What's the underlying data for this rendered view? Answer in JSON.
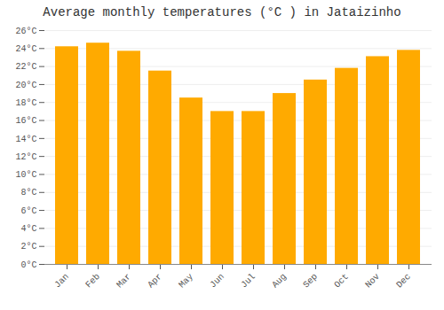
{
  "chart_data": {
    "type": "bar",
    "title": "Average monthly temperatures (°C ) in Jataizinho",
    "categories": [
      "Jan",
      "Feb",
      "Mar",
      "Apr",
      "May",
      "Jun",
      "Jul",
      "Aug",
      "Sep",
      "Oct",
      "Nov",
      "Dec"
    ],
    "values": [
      24.2,
      24.6,
      23.7,
      21.5,
      18.5,
      17.0,
      17.0,
      19.0,
      20.5,
      21.8,
      23.1,
      23.8
    ],
    "color": "#FFAA00",
    "ylim": [
      0,
      26
    ],
    "yticks": [
      {
        "value": 0,
        "label": "0°C"
      },
      {
        "value": 2,
        "label": "2°C"
      },
      {
        "value": 4,
        "label": "4°C"
      },
      {
        "value": 6,
        "label": "6°C"
      },
      {
        "value": 8,
        "label": "8°C"
      },
      {
        "value": 10,
        "label": "10°C"
      },
      {
        "value": 12,
        "label": "12°C"
      },
      {
        "value": 14,
        "label": "14°C"
      },
      {
        "value": 16,
        "label": "16°C"
      },
      {
        "value": 18,
        "label": "18°C"
      },
      {
        "value": 20,
        "label": "20°C"
      },
      {
        "value": 22,
        "label": "22°C"
      },
      {
        "value": 24,
        "label": "24°C"
      },
      {
        "value": 26,
        "label": "26°C"
      }
    ],
    "grid": true
  }
}
